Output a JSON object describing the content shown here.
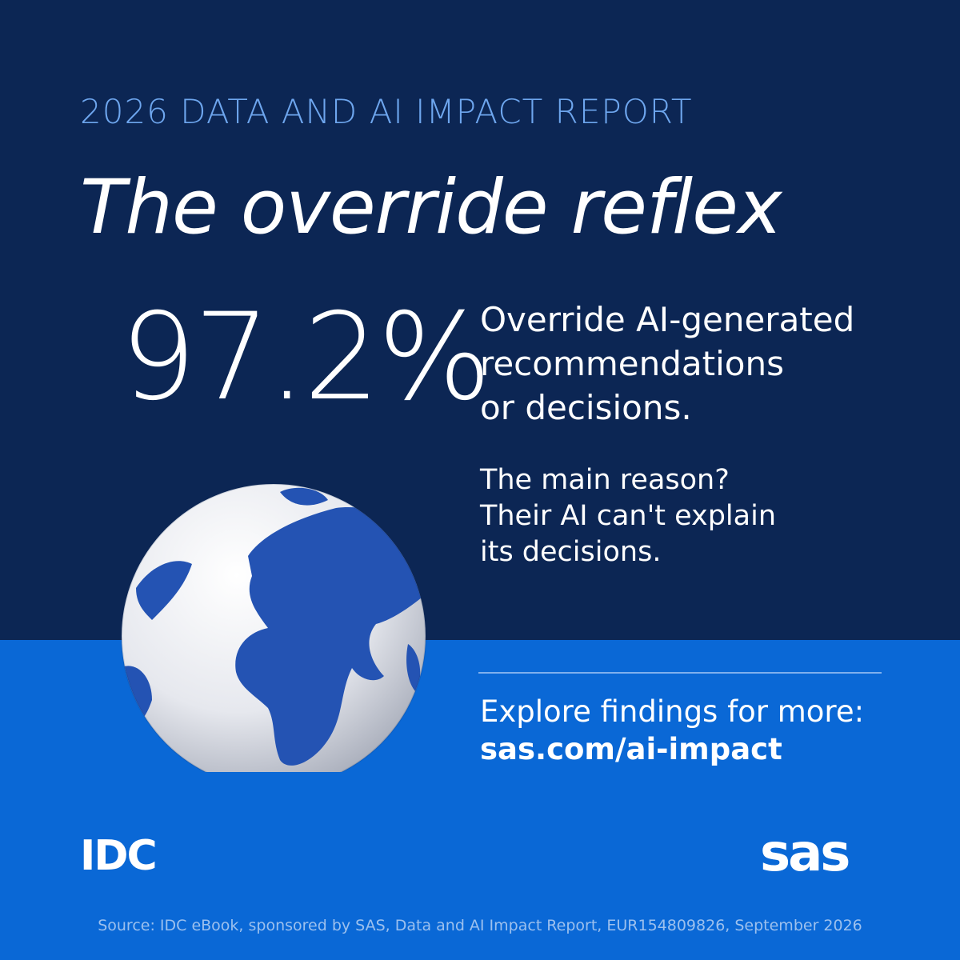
{
  "header": {
    "kicker": "2026 DATA AND AI IMPACT REPORT",
    "title": "The override reflex"
  },
  "stat": {
    "value": "97.2%",
    "lines": [
      "Override AI-generated",
      "recommendations",
      "or decisions."
    ]
  },
  "reason": {
    "lines": [
      "The main reason?",
      "Their AI can't explain",
      "its decisions."
    ]
  },
  "cta": {
    "text": "Explore findings for more:",
    "link": "sas.com/ai-impact"
  },
  "logos": {
    "left": "IDC",
    "right": "sas"
  },
  "footer": {
    "source": "Source: IDC eBook, sponsored by SAS, Data and AI Impact Report, EUR154809826, September 2026"
  }
}
